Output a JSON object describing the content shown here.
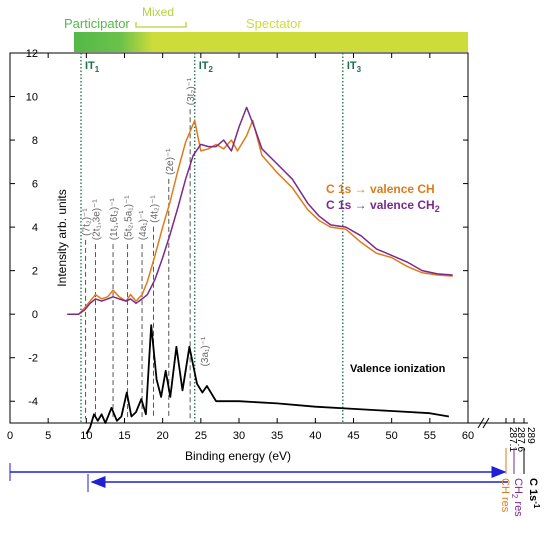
{
  "chart_data": {
    "type": "line",
    "ylabel": "Intensity arb. units",
    "xlabel": "Binding energy (eV)",
    "xlim": [
      0,
      60
    ],
    "ylim": [
      -5,
      12
    ],
    "xticks": [
      "0",
      "5",
      "10",
      "15",
      "20",
      "25",
      "30",
      "35",
      "40",
      "45",
      "50",
      "55",
      "60"
    ],
    "yticks": [
      "-4",
      "-2",
      "0",
      "2",
      "4",
      "6",
      "8",
      "10",
      "12"
    ],
    "axis_extension_ticks": [
      "287.1",
      "287.6",
      "289"
    ],
    "regimes": [
      {
        "label": "Participator",
        "from": 9.5,
        "to": 14.5,
        "color": "#5fc24a"
      },
      {
        "label": "Mixed",
        "from": 14.5,
        "to": 18.5,
        "color": "#b5d33a"
      },
      {
        "label": "Spectator",
        "from": 18.5,
        "to": 62,
        "color": "#cddc39"
      }
    ],
    "thresholds": [
      {
        "label": "IT",
        "sub": "1",
        "x": 9.3
      },
      {
        "label": "IT",
        "sub": "2",
        "x": 24.2
      },
      {
        "label": "IT",
        "sub": "3",
        "x": 43.6
      }
    ],
    "orbital_labels": [
      {
        "text": "(7t₂)⁻¹",
        "x": 9.9
      },
      {
        "text": "(2t₁,3e)⁻¹",
        "x": 11.2
      },
      {
        "text": "(1t₁,6t₂)⁻¹",
        "x": 13.5
      },
      {
        "text": "(5t₂,5a₁)⁻¹",
        "x": 15.4
      },
      {
        "text": "(4a₁)⁻¹",
        "x": 17.3
      },
      {
        "text": "(4t₂)⁻¹",
        "x": 18.8
      },
      {
        "text": "(2e)⁻¹",
        "x": 20.8
      },
      {
        "text": "(3t₂)⁻¹",
        "x": 23.6
      },
      {
        "text": "(3a₁)⁻¹",
        "x": 25.4
      }
    ],
    "series": [
      {
        "name": "C 1s → valence CH",
        "color": "#e07b1a",
        "points": [
          [
            7.5,
            0.0
          ],
          [
            9.0,
            0.0
          ],
          [
            9.8,
            0.3
          ],
          [
            10.5,
            0.6
          ],
          [
            11.2,
            0.9
          ],
          [
            12.0,
            0.7
          ],
          [
            12.8,
            0.8
          ],
          [
            13.5,
            1.1
          ],
          [
            14.3,
            0.8
          ],
          [
            15.2,
            0.6
          ],
          [
            15.8,
            0.9
          ],
          [
            16.5,
            0.6
          ],
          [
            17.3,
            0.9
          ],
          [
            18.0,
            1.5
          ],
          [
            19.0,
            2.7
          ],
          [
            20.0,
            4.0
          ],
          [
            21.0,
            5.2
          ],
          [
            22.0,
            6.6
          ],
          [
            23.0,
            7.9
          ],
          [
            24.2,
            8.9
          ],
          [
            25.0,
            7.5
          ],
          [
            26.0,
            7.6
          ],
          [
            27.0,
            7.8
          ],
          [
            28.0,
            7.6
          ],
          [
            29.0,
            8.0
          ],
          [
            29.8,
            7.5
          ],
          [
            31.0,
            8.2
          ],
          [
            31.8,
            8.9
          ],
          [
            33.0,
            7.3
          ],
          [
            35.0,
            6.5
          ],
          [
            37.0,
            5.8
          ],
          [
            39.0,
            4.8
          ],
          [
            40.5,
            4.3
          ],
          [
            42.0,
            4.0
          ],
          [
            44.0,
            3.9
          ],
          [
            46.0,
            3.3
          ],
          [
            48.0,
            2.8
          ],
          [
            50.0,
            2.6
          ],
          [
            52.0,
            2.2
          ],
          [
            54.0,
            1.9
          ],
          [
            56.0,
            1.8
          ],
          [
            58.0,
            1.75
          ]
        ]
      },
      {
        "name": "C 1s → valence CH",
        "name_sub": "2",
        "color": "#7b2a8c",
        "points": [
          [
            7.5,
            0.0
          ],
          [
            9.0,
            0.0
          ],
          [
            9.8,
            0.2
          ],
          [
            10.5,
            0.5
          ],
          [
            11.2,
            0.7
          ],
          [
            12.0,
            0.6
          ],
          [
            12.8,
            0.7
          ],
          [
            13.5,
            0.8
          ],
          [
            14.3,
            0.7
          ],
          [
            15.2,
            0.6
          ],
          [
            15.8,
            0.7
          ],
          [
            16.5,
            0.5
          ],
          [
            17.3,
            0.7
          ],
          [
            18.0,
            0.9
          ],
          [
            19.0,
            1.6
          ],
          [
            20.0,
            2.6
          ],
          [
            21.0,
            3.7
          ],
          [
            22.0,
            4.9
          ],
          [
            23.0,
            6.2
          ],
          [
            24.0,
            7.3
          ],
          [
            25.0,
            7.8
          ],
          [
            26.0,
            7.7
          ],
          [
            27.0,
            7.7
          ],
          [
            28.0,
            8.0
          ],
          [
            29.0,
            7.5
          ],
          [
            30.0,
            8.6
          ],
          [
            31.0,
            9.5
          ],
          [
            32.0,
            8.6
          ],
          [
            33.0,
            7.6
          ],
          [
            35.0,
            6.9
          ],
          [
            37.0,
            6.2
          ],
          [
            39.0,
            5.1
          ],
          [
            40.5,
            4.5
          ],
          [
            42.0,
            4.1
          ],
          [
            44.0,
            4.0
          ],
          [
            46.0,
            3.6
          ],
          [
            48.0,
            3.0
          ],
          [
            50.0,
            2.7
          ],
          [
            52.0,
            2.4
          ],
          [
            54.0,
            2.0
          ],
          [
            56.0,
            1.85
          ],
          [
            58.0,
            1.8
          ]
        ]
      },
      {
        "name": "Valence ionization",
        "color": "#000000",
        "points": [
          [
            10.0,
            -5.5
          ],
          [
            10.5,
            -5.2
          ],
          [
            11.0,
            -4.6
          ],
          [
            11.5,
            -4.9
          ],
          [
            12.0,
            -4.6
          ],
          [
            12.5,
            -5.0
          ],
          [
            13.3,
            -4.3
          ],
          [
            14.0,
            -4.9
          ],
          [
            14.6,
            -4.7
          ],
          [
            15.3,
            -3.6
          ],
          [
            15.9,
            -4.7
          ],
          [
            16.5,
            -4.5
          ],
          [
            17.2,
            -3.9
          ],
          [
            17.8,
            -4.6
          ],
          [
            18.5,
            -0.5
          ],
          [
            19.2,
            -3.0
          ],
          [
            19.8,
            -3.8
          ],
          [
            20.4,
            -2.6
          ],
          [
            21.0,
            -3.8
          ],
          [
            21.8,
            -1.5
          ],
          [
            22.6,
            -3.5
          ],
          [
            23.5,
            -1.5
          ],
          [
            24.5,
            -3.2
          ],
          [
            25.2,
            -3.6
          ],
          [
            25.8,
            -3.3
          ],
          [
            27.0,
            -4.0
          ],
          [
            30.0,
            -4.0
          ],
          [
            35.0,
            -4.1
          ],
          [
            40.0,
            -4.25
          ],
          [
            45.0,
            -4.35
          ],
          [
            50.0,
            -4.45
          ],
          [
            55.0,
            -4.55
          ],
          [
            57.5,
            -4.7
          ]
        ]
      }
    ],
    "annotations": {
      "valence_ionization": "Valence ionization",
      "c1s_label": "C 1s",
      "c1s_sup": "-1",
      "ch2_res": "CH",
      "ch2_res_sub": "2",
      "ch2_res_suffix": " res",
      "ch_res": "CH res"
    },
    "colors": {
      "ch": "#e07b1a",
      "ch2": "#7b2a8c",
      "threshold": "#1a6e4a",
      "arrow": "#1f1fd6",
      "dashed": "#555555"
    }
  }
}
